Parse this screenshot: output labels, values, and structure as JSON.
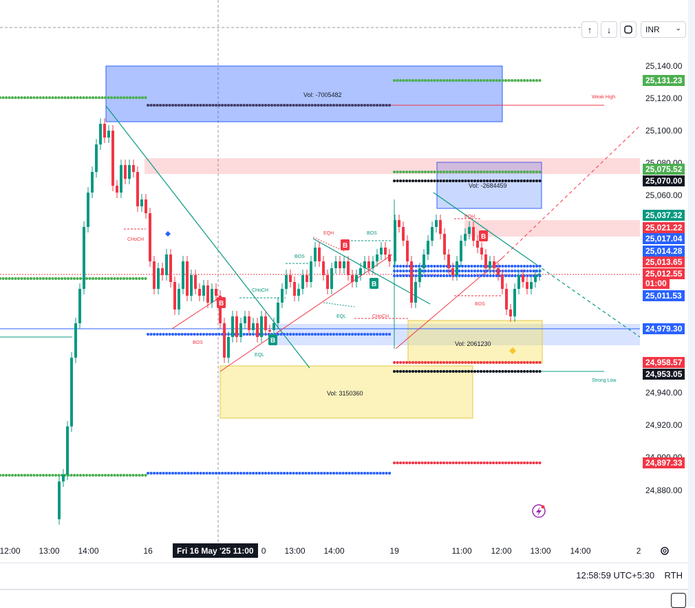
{
  "toolbar": {
    "up_icon": "↑",
    "down_icon": "↓",
    "currency": "INR"
  },
  "price_axis": {
    "ticks": [
      "25,140.00",
      "25,120.00",
      "25,100.00",
      "25,080.00",
      "25,060.00",
      "24,940.00",
      "24,920.00",
      "24,900.00",
      "24,880.00"
    ]
  },
  "price_labels": [
    {
      "text": "25,131.23",
      "color": "#4caf50"
    },
    {
      "text": "25,075.52",
      "color": "#4caf50"
    },
    {
      "text": "25,070.00",
      "color": "#131722"
    },
    {
      "text": "25,037.32",
      "color": "#089981"
    },
    {
      "text": "25,021.22",
      "color": "#f23645"
    },
    {
      "text": "25,017.04",
      "color": "#2962ff"
    },
    {
      "text": "25,014.28",
      "color": "#2962ff"
    },
    {
      "text": "25,013.65",
      "color": "#f23645"
    },
    {
      "text": "25,012.55",
      "color": "#f23645"
    },
    {
      "text": "01:00",
      "color": "#f23645"
    },
    {
      "text": "25,011.53",
      "color": "#2962ff"
    },
    {
      "text": "24,979.30",
      "color": "#2962ff"
    },
    {
      "text": "24,958.57",
      "color": "#f23645"
    },
    {
      "text": "24,953.05",
      "color": "#131722"
    },
    {
      "text": "24,897.33",
      "color": "#f23645"
    }
  ],
  "time_axis": {
    "ticks": [
      "12:00",
      "13:00",
      "14:00",
      "16",
      "0",
      "13:00",
      "14:00",
      "19",
      "11:00",
      "12:00",
      "13:00",
      "14:00",
      "2"
    ],
    "highlight": "Fri 16 May '25   11:00"
  },
  "annotations": {
    "vol1": "Vol: -7005482",
    "vol2": "Vol: -2684459",
    "vol3": "Vol: 2061230",
    "vol4": "Vol: 3150360",
    "weak_high": "Weak High",
    "strong_low": "Strong Low",
    "choch1": "CHoCH",
    "choch2": "CHoCH",
    "choch3": "CHoCH",
    "bos1": "BOS",
    "bos2": "BOS",
    "bos3": "BOS",
    "bos4": "BOS",
    "eqh1": "EQH",
    "eqh2": "EQH",
    "eql1": "EQL",
    "eql2": "EQL",
    "b_label": "B"
  },
  "status": {
    "clock": "12:58:59 UTC+5:30",
    "session": "RTH"
  },
  "colors": {
    "up": "#089981",
    "down": "#f23645",
    "blue_zone": "#2962ff",
    "yellow_zone": "#f7e26b"
  }
}
